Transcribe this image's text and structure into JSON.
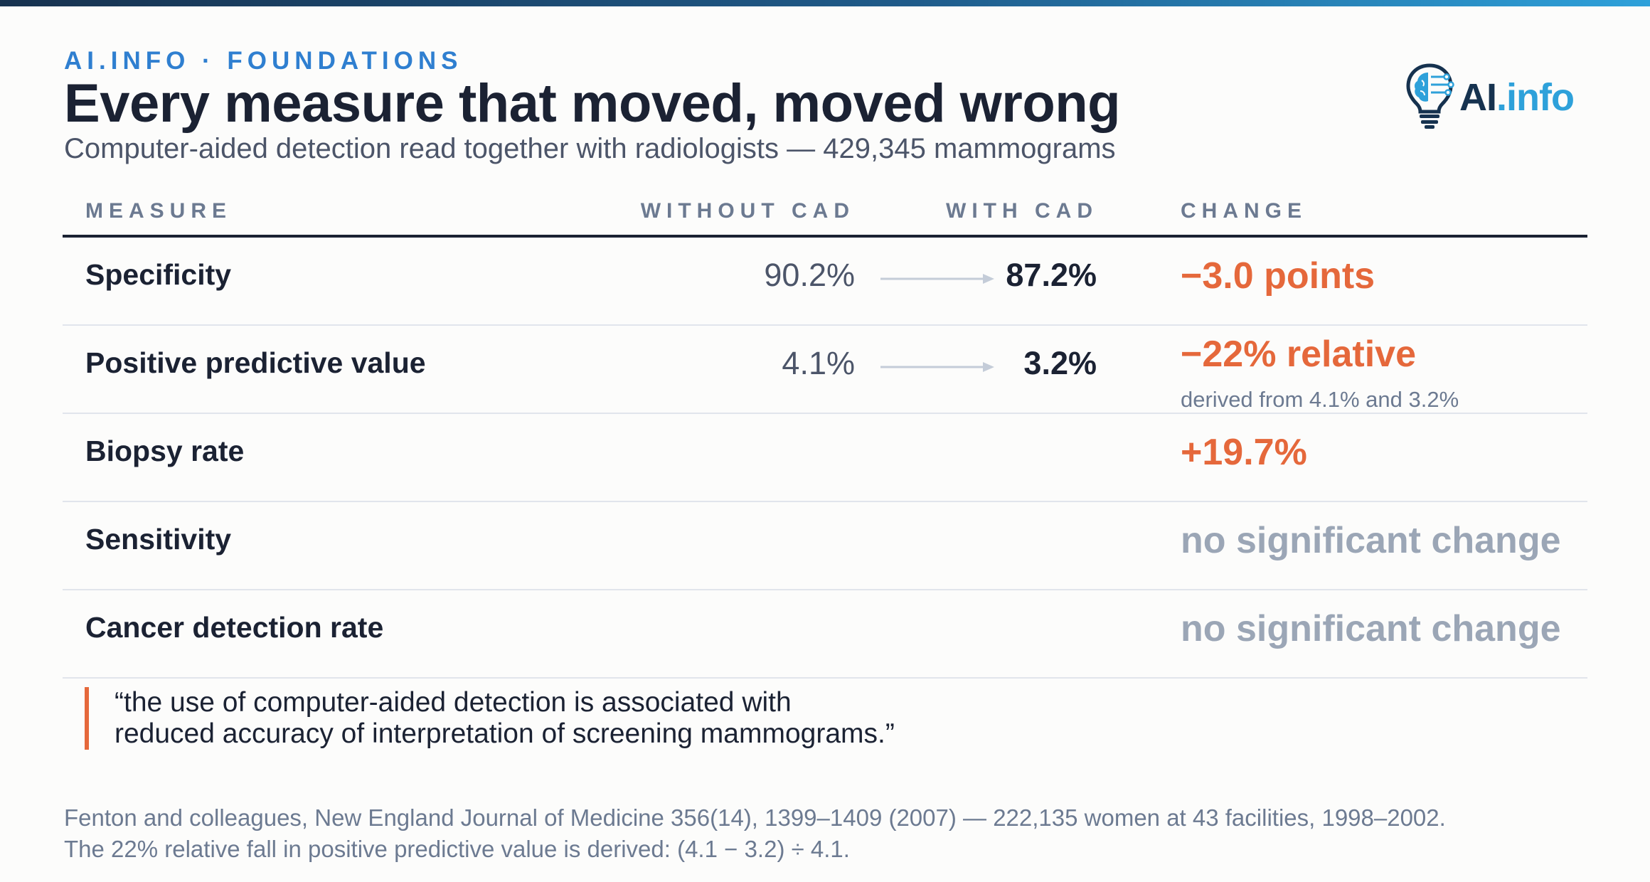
{
  "header": {
    "kicker": "AI.INFO · FOUNDATIONS",
    "title": "Every measure that moved, moved wrong",
    "subtitle": "Computer-aided detection read together with radiologists — 429,345 mammograms"
  },
  "logo": {
    "icon": "lightbulb-brain-icon",
    "text_ai": "AI",
    "text_info": ".info"
  },
  "colors": {
    "accent_orange": "#e5683b",
    "brand_blue": "#2f7fd0",
    "brand_navy": "#16324f",
    "muted_gray": "#9ba6b6"
  },
  "table": {
    "columns": [
      "MEASURE",
      "WITHOUT CAD",
      "WITH CAD",
      "CHANGE"
    ],
    "rows": [
      {
        "measure": "Specificity",
        "without": "90.2%",
        "with": "87.2%",
        "change": "−3.0 points",
        "note": "",
        "significant": true
      },
      {
        "measure": "Positive predictive value",
        "without": "4.1%",
        "with": "3.2%",
        "change": "−22% relative",
        "note": "derived from 4.1% and 3.2%",
        "significant": true
      },
      {
        "measure": "Biopsy rate",
        "without": "",
        "with": "",
        "change": "+19.7%",
        "note": "",
        "significant": true
      },
      {
        "measure": "Sensitivity",
        "without": "",
        "with": "",
        "change": "no significant change",
        "note": "",
        "significant": false
      },
      {
        "measure": "Cancer detection rate",
        "without": "",
        "with": "",
        "change": "no significant change",
        "note": "",
        "significant": false
      }
    ]
  },
  "quote": {
    "line1": "“the use of computer-aided detection is associated with",
    "line2": "reduced accuracy of interpretation of screening mammograms.”"
  },
  "footnote": {
    "line1": "Fenton and colleagues, New England Journal of Medicine 356(14), 1399–1409 (2007) — 222,135 women at 43 facilities, 1998–2002.",
    "line2": "The 22% relative fall in positive predictive value is derived: (4.1 − 3.2) ÷ 4.1."
  }
}
